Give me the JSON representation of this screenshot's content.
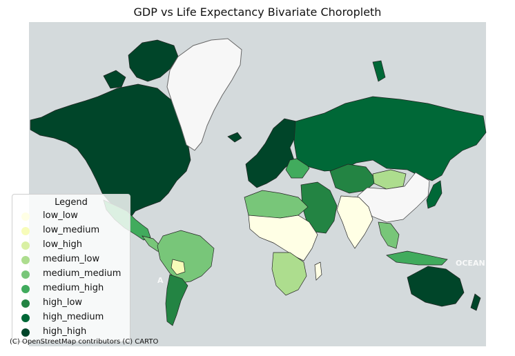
{
  "title": "GDP vs Life Expectancy Bivariate Choropleth",
  "legend": {
    "title": "Legend",
    "items": [
      {
        "label": "low_low",
        "color": "#ffffe5"
      },
      {
        "label": "low_medium",
        "color": "#f7fcb9"
      },
      {
        "label": "low_high",
        "color": "#d9f0a3"
      },
      {
        "label": "medium_low",
        "color": "#addd8e"
      },
      {
        "label": "medium_medium",
        "color": "#78c679"
      },
      {
        "label": "medium_high",
        "color": "#41ab5d"
      },
      {
        "label": "high_low",
        "color": "#238443"
      },
      {
        "label": "high_medium",
        "color": "#006837"
      },
      {
        "label": "high_high",
        "color": "#004529"
      }
    ]
  },
  "basemap": {
    "ocean_color": "#d4dadc",
    "no_data_color": "#f7f7f7",
    "ocean_label": "OCEAN",
    "continent_label": "A"
  },
  "attribution": "(C) OpenStreetMap contributors (C) CARTO"
}
